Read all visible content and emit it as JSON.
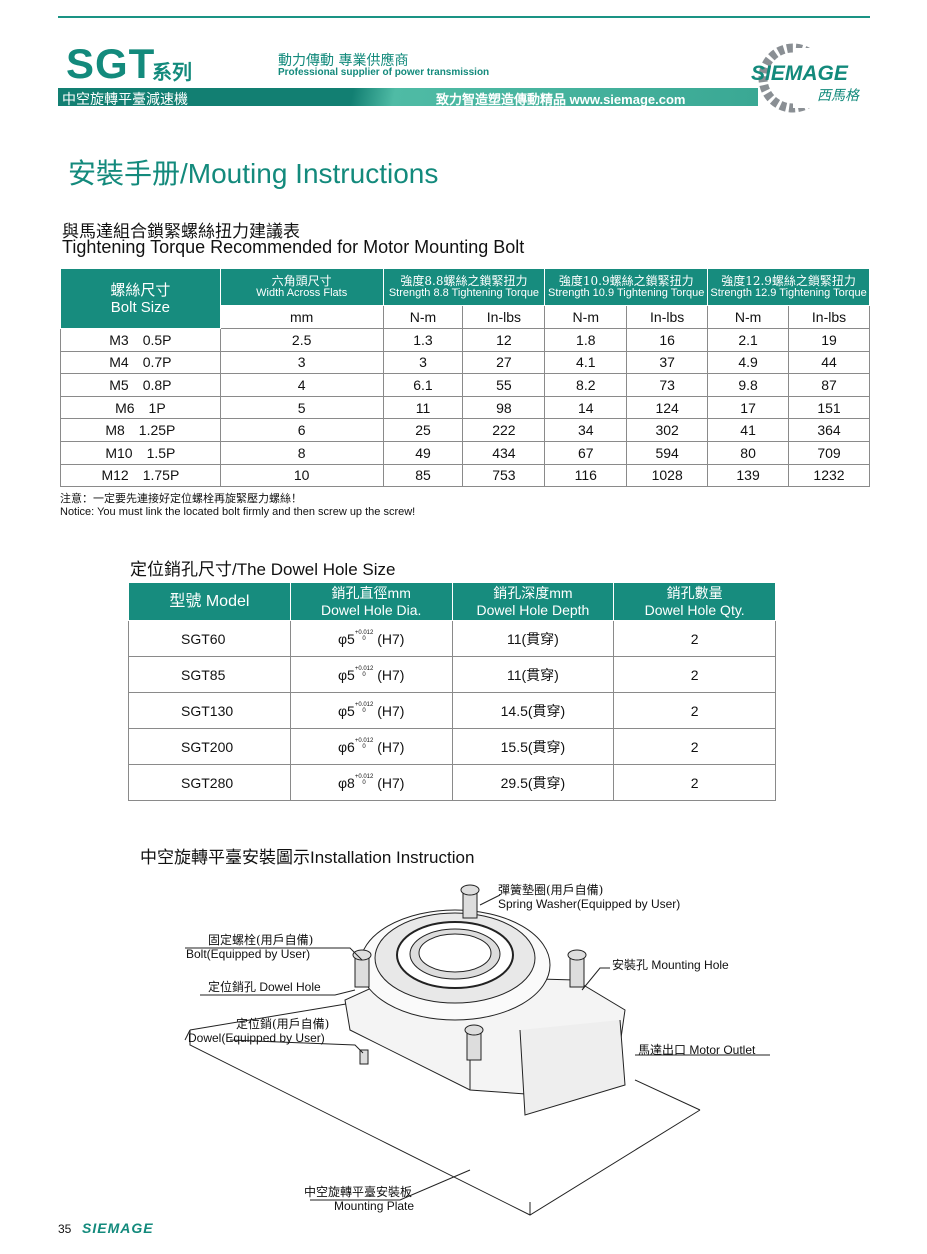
{
  "header": {
    "series": "SGT",
    "series_cn": "系列",
    "tagline_cn": "動力傳動 專業供應商",
    "tagline_en": "Professional supplier of power transmission",
    "product_cn": "中空旋轉平臺減速機",
    "slogan": "致力智造塑造傳動精品 www.siemage.com",
    "logo_text": "SIEMAGE",
    "logo_cn": "西馬格"
  },
  "title": "安裝手册/Mouting Instructions",
  "torque": {
    "title_cn": "與馬達組合鎖緊螺絲扭力建議表",
    "title_en": "Tightening Torque Recommended for Motor Mounting Bolt",
    "headers": {
      "bolt_cn": "螺絲尺寸",
      "bolt_en": "Bolt Size",
      "wf_cn": "六角頭尺寸",
      "wf_en": "Width Across Flats",
      "s88_cn": "強度8.8螺絲之鎖緊扭力",
      "s88_en": "Strength 8.8 Tightening Torque",
      "s109_cn": "強度10.9螺絲之鎖緊扭力",
      "s109_en": "Strength 10.9 Tightening Torque",
      "s129_cn": "強度12.9螺絲之鎖緊扭力",
      "s129_en": "Strength 12.9 Tightening Torque"
    },
    "units": [
      "mm",
      "N-m",
      "In-lbs",
      "N-m",
      "In-lbs",
      "N-m",
      "In-lbs"
    ],
    "rows": [
      [
        "M3　0.5P",
        "2.5",
        "1.3",
        "12",
        "1.8",
        "16",
        "2.1",
        "19"
      ],
      [
        "M4　0.7P",
        "3",
        "3",
        "27",
        "4.1",
        "37",
        "4.9",
        "44"
      ],
      [
        "M5　0.8P",
        "4",
        "6.1",
        "55",
        "8.2",
        "73",
        "9.8",
        "87"
      ],
      [
        "M6　1P",
        "5",
        "11",
        "98",
        "14",
        "124",
        "17",
        "151"
      ],
      [
        "M8　1.25P",
        "6",
        "25",
        "222",
        "34",
        "302",
        "41",
        "364"
      ],
      [
        "M10　1.5P",
        "8",
        "49",
        "434",
        "67",
        "594",
        "80",
        "709"
      ],
      [
        "M12　1.75P",
        "10",
        "85",
        "753",
        "116",
        "1028",
        "139",
        "1232"
      ]
    ]
  },
  "note": {
    "cn": "注意：一定要先連接好定位螺栓再旋緊壓力螺絲！",
    "en": "Notice: You must link the located bolt firmly and then screw up the screw!"
  },
  "dowel": {
    "title": "定位銷孔尺寸/The Dowel Hole Size",
    "headers": [
      {
        "cn": "型號 Model",
        "en": ""
      },
      {
        "cn": "銷孔直徑mm",
        "en": "Dowel Hole Dia."
      },
      {
        "cn": "銷孔深度mm",
        "en": "Dowel Hole Depth"
      },
      {
        "cn": "銷孔數量",
        "en": "Dowel Hole Qty."
      }
    ],
    "tolerance_upper": "+0.012",
    "tolerance_lower": "0",
    "rows": [
      {
        "model": "SGT60",
        "dia": "φ5",
        "fit": "(H7)",
        "depth": "11(貫穿)",
        "qty": "2"
      },
      {
        "model": "SGT85",
        "dia": "φ5",
        "fit": "(H7)",
        "depth": "11(貫穿)",
        "qty": "2"
      },
      {
        "model": "SGT130",
        "dia": "φ5",
        "fit": "(H7)",
        "depth": "14.5(貫穿)",
        "qty": "2"
      },
      {
        "model": "SGT200",
        "dia": "φ6",
        "fit": "(H7)",
        "depth": "15.5(貫穿)",
        "qty": "2"
      },
      {
        "model": "SGT280",
        "dia": "φ8",
        "fit": "(H7)",
        "depth": "29.5(貫穿)",
        "qty": "2"
      }
    ]
  },
  "install": {
    "title": "中空旋轉平臺安裝圖示Installation Instruction",
    "labels": {
      "washer_cn": "彈簧墊圈(用戶自備)",
      "washer_en": "Spring Washer(Equipped by User)",
      "bolt_cn": "固定螺栓(用戶自備)",
      "bolt_en": "Bolt(Equipped by User)",
      "dowel_hole": "定位銷孔 Dowel Hole",
      "dowel_cn": "定位銷(用戶自備)",
      "dowel_en": "Dowel(Equipped by User)",
      "mounting_hole": "安裝孔 Mounting Hole",
      "motor_outlet": "馬達出口 Motor Outlet",
      "plate_cn": "中空旋轉平臺安裝板",
      "plate_en": "Mounting Plate"
    }
  },
  "footer": {
    "page": "35",
    "brand": "SIEMAGE"
  },
  "colors": {
    "accent": "#178c7e"
  }
}
